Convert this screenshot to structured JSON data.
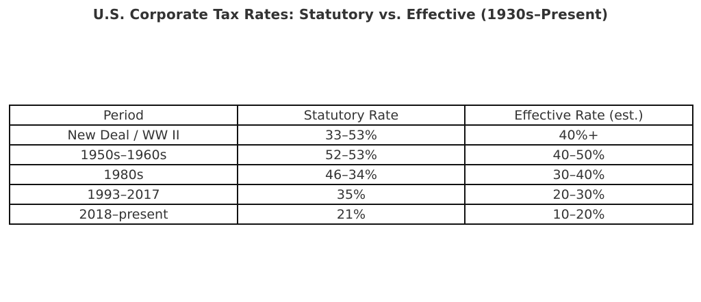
{
  "chart_data": {
    "type": "table",
    "title": "U.S. Corporate Tax Rates: Statutory vs. Effective (1930s–Present)",
    "columns": [
      "Period",
      "Statutory Rate",
      "Effective Rate (est.)"
    ],
    "rows": [
      [
        "New Deal / WW II",
        "33–53%",
        "40%+"
      ],
      [
        "1950s–1960s",
        "52–53%",
        "40–50%"
      ],
      [
        "1980s",
        "46–34%",
        "30–40%"
      ],
      [
        "1993–2017",
        "35%",
        "20–30%"
      ],
      [
        "2018–present",
        "21%",
        "10–20%"
      ]
    ]
  }
}
